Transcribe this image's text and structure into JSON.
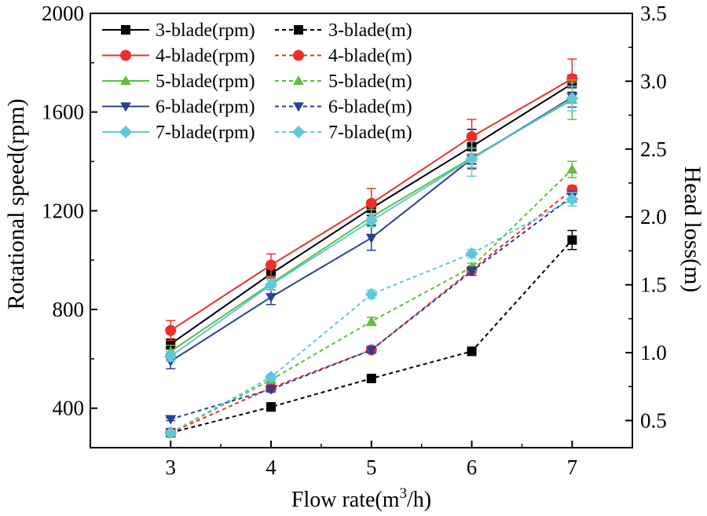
{
  "chart_data": {
    "type": "line",
    "x": [
      3,
      4,
      5,
      6,
      7
    ],
    "xlabel": "Flow rate(m",
    "xlabel_sup": "3",
    "xlabel_tail": "/h)",
    "ylabel": "Rotational speed(rpm)",
    "y2label": "Head loss(m)",
    "xlim": [
      2.2,
      7.6
    ],
    "ylim": [
      240,
      2000
    ],
    "y2lim": [
      0.3,
      3.5
    ],
    "xticks": [
      "3",
      "4",
      "5",
      "6",
      "7"
    ],
    "yticks": [
      "400",
      "800",
      "1200",
      "1600",
      "2000"
    ],
    "y2ticks": [
      "0.5",
      "1.0",
      "1.5",
      "2.0",
      "2.5",
      "3.0",
      "3.5"
    ],
    "legend_position": "top-left",
    "series": [
      {
        "name": "3-blade(rpm)",
        "axis": "left",
        "color": "#000000",
        "marker": "square",
        "dash": false,
        "values": [
          660,
          945,
          1210,
          1460,
          1715
        ],
        "errors": [
          20,
          25,
          30,
          70,
          35
        ]
      },
      {
        "name": "4-blade(rpm)",
        "axis": "left",
        "color": "#e8312a",
        "marker": "circle",
        "dash": false,
        "values": [
          715,
          980,
          1230,
          1500,
          1735
        ],
        "errors": [
          40,
          45,
          60,
          70,
          80
        ]
      },
      {
        "name": "5-blade(rpm)",
        "axis": "left",
        "color": "#5fbe3c",
        "marker": "triangle-up",
        "dash": false,
        "values": [
          630,
          905,
          1175,
          1415,
          1650
        ],
        "errors": [
          25,
          25,
          30,
          40,
          80
        ]
      },
      {
        "name": "6-blade(rpm)",
        "axis": "left",
        "color": "#2b3f98",
        "marker": "triangle-down",
        "dash": false,
        "values": [
          590,
          850,
          1090,
          1410,
          1660
        ],
        "errors": [
          30,
          30,
          50,
          40,
          40
        ]
      },
      {
        "name": "7-blade(rpm)",
        "axis": "left",
        "color": "#5ec8dd",
        "marker": "diamond",
        "dash": false,
        "values": [
          610,
          900,
          1160,
          1410,
          1655
        ],
        "errors": [
          20,
          20,
          25,
          70,
          50
        ]
      },
      {
        "name": "3-blade(m)",
        "axis": "right",
        "color": "#000000",
        "marker": "square",
        "dash": true,
        "values": [
          0.41,
          0.6,
          0.81,
          1.01,
          1.83
        ],
        "errors": [
          0.01,
          0.03,
          0.02,
          0.03,
          0.07
        ]
      },
      {
        "name": "4-blade(m)",
        "axis": "right",
        "color": "#e8312a",
        "marker": "circle",
        "dash": true,
        "values": [
          0.41,
          0.74,
          1.02,
          1.61,
          2.2
        ],
        "errors": [
          0.01,
          0.02,
          0.02,
          0.02,
          0.03
        ]
      },
      {
        "name": "5-blade(m)",
        "axis": "right",
        "color": "#5fbe3c",
        "marker": "triangle-up",
        "dash": true,
        "values": [
          0.41,
          0.8,
          1.23,
          1.63,
          2.35
        ],
        "errors": [
          0.01,
          0.02,
          0.03,
          0.03,
          0.06
        ]
      },
      {
        "name": "6-blade(m)",
        "axis": "right",
        "color": "#2b3f98",
        "marker": "triangle-down",
        "dash": true,
        "values": [
          0.51,
          0.73,
          1.02,
          1.6,
          2.15
        ],
        "errors": [
          0.01,
          0.02,
          0.02,
          0.03,
          0.04
        ]
      },
      {
        "name": "7-blade(m)",
        "axis": "right",
        "color": "#5ec8dd",
        "marker": "diamond",
        "dash": true,
        "values": [
          0.41,
          0.82,
          1.43,
          1.73,
          2.13
        ],
        "errors": [
          0.01,
          0.02,
          0.03,
          0.03,
          0.05
        ]
      }
    ],
    "legend_order": [
      "3-blade(rpm)",
      "3-blade(m)",
      "4-blade(rpm)",
      "4-blade(m)",
      "5-blade(rpm)",
      "5-blade(m)",
      "6-blade(rpm)",
      "6-blade(m)",
      "7-blade(rpm)",
      "7-blade(m)"
    ]
  }
}
